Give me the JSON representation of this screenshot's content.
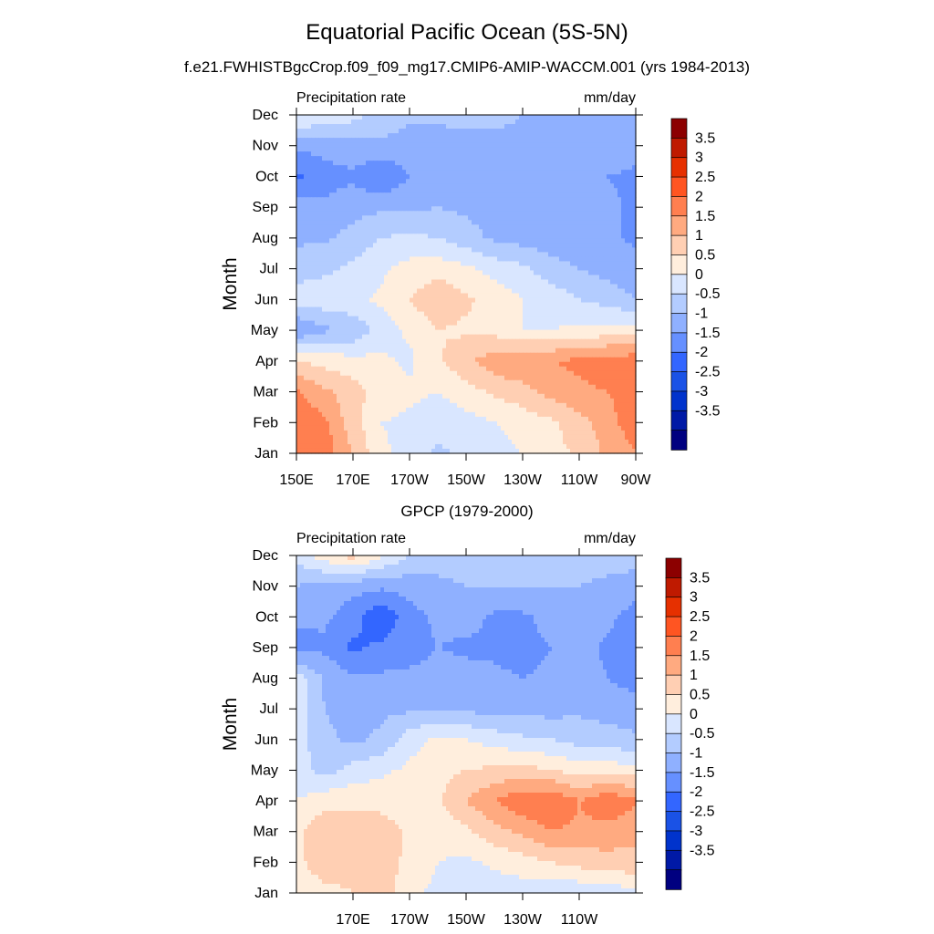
{
  "title": "Equatorial Pacific Ocean (5S-5N)",
  "subtitle": "f.e21.FWHISTBgcCrop.f09_f09_mg17.CMIP6-AMIP-WACCM.001 (yrs 1984-2013)",
  "colorbar": {
    "colors": [
      "#000080",
      "#0019a6",
      "#0033cc",
      "#1a52e6",
      "#3366ff",
      "#6690ff",
      "#8fb0ff",
      "#b3ccff",
      "#d9e6ff",
      "#ffeedd",
      "#ffcfb3",
      "#ffaa80",
      "#ff7f50",
      "#ff5522",
      "#e63000",
      "#bf1a00",
      "#8c0000"
    ],
    "labels": [
      "3.5",
      "3",
      "2.5",
      "2",
      "1.5",
      "1",
      "0.5",
      "0",
      "-0.5",
      "-1",
      "-1.5",
      "-2",
      "-2.5",
      "-3",
      "-3.5"
    ]
  },
  "chart_data": [
    {
      "type": "heatmap",
      "title": "",
      "left_label": "Precipitation rate",
      "right_label": "mm/day",
      "ylabel": "Month",
      "xlabel": "",
      "y_ticks": [
        "Jan",
        "Feb",
        "Mar",
        "Apr",
        "May",
        "Jun",
        "Jul",
        "Aug",
        "Sep",
        "Oct",
        "Nov",
        "Dec"
      ],
      "x_ticks": [
        "150E",
        "170E",
        "170W",
        "150W",
        "130W",
        "110W",
        "90W"
      ],
      "x_values": [
        150,
        170,
        190,
        210,
        230,
        250,
        270
      ],
      "xlim": [
        150,
        270
      ],
      "ylim": [
        0,
        11
      ],
      "clim": [
        -4,
        4
      ],
      "level_step": 0.5,
      "grid": [
        [
          2.2,
          2.3,
          1.5,
          0.6,
          0.3,
          -0.1,
          0.1,
          0.3,
          0.5,
          0.8,
          1.1,
          1.6,
          2.0
        ],
        [
          2.4,
          2.1,
          1.2,
          0.5,
          0.4,
          0.2,
          0.3,
          0.5,
          0.7,
          0.9,
          1.3,
          1.8,
          2.3
        ],
        [
          2.1,
          1.6,
          1.2,
          0.8,
          0.6,
          0.5,
          0.8,
          1.1,
          1.3,
          1.7,
          1.9,
          2.0,
          2.3
        ],
        [
          1.0,
          0.8,
          0.7,
          0.6,
          0.4,
          0.9,
          1.4,
          1.8,
          2.0,
          2.0,
          2.1,
          2.3,
          2.3
        ],
        [
          -1.0,
          -0.6,
          -0.4,
          0.2,
          0.6,
          1.0,
          0.9,
          0.8,
          0.5,
          0.5,
          0.6,
          0.7,
          0.8
        ],
        [
          0.2,
          0.3,
          0.4,
          0.6,
          1.0,
          1.4,
          1.1,
          0.8,
          0.5,
          0.3,
          0.0,
          -0.2,
          -0.5
        ],
        [
          -0.2,
          -0.1,
          0.1,
          0.4,
          0.7,
          0.8,
          0.6,
          0.3,
          0.1,
          -0.3,
          -0.5,
          -0.7,
          -0.8
        ],
        [
          -0.6,
          -0.6,
          -0.3,
          0.0,
          0.1,
          0.0,
          -0.3,
          -0.6,
          -0.7,
          -0.8,
          -0.8,
          -0.9,
          -1.1
        ],
        [
          -0.8,
          -0.9,
          -0.7,
          -0.6,
          -0.6,
          -0.5,
          -0.6,
          -0.7,
          -0.8,
          -0.8,
          -0.7,
          -0.9,
          -1.1
        ],
        [
          -1.6,
          -1.2,
          -1.1,
          -1.5,
          -1.0,
          -0.8,
          -1.0,
          -1.0,
          -0.8,
          -0.6,
          -0.6,
          -1.0,
          -1.1
        ],
        [
          -0.9,
          -0.8,
          -0.7,
          -0.6,
          -0.7,
          -0.7,
          -0.6,
          -0.6,
          -0.6,
          -0.6,
          -0.6,
          -0.7,
          -0.8
        ],
        [
          0.6,
          0.4,
          0.2,
          -0.2,
          -0.4,
          -0.4,
          -0.4,
          -0.4,
          -0.5,
          -0.5,
          -0.5,
          -0.6,
          -0.6
        ]
      ]
    },
    {
      "type": "heatmap",
      "title": "GPCP (1979-2000)",
      "left_label": "Precipitation rate",
      "right_label": "mm/day",
      "ylabel": "Month",
      "xlabel": "",
      "y_ticks": [
        "Jan",
        "Feb",
        "Mar",
        "Apr",
        "May",
        "Jun",
        "Jul",
        "Aug",
        "Sep",
        "Oct",
        "Nov",
        "Dec"
      ],
      "x_ticks": [
        "170E",
        "170W",
        "150W",
        "130W",
        "110W"
      ],
      "x_values": [
        170,
        190,
        210,
        230,
        250
      ],
      "xlim": [
        150,
        270
      ],
      "ylim": [
        0,
        11
      ],
      "clim": [
        -4,
        4
      ],
      "level_step": 0.5,
      "grid": [
        [
          0.8,
          0.9,
          1.0,
          1.3,
          0.6,
          0.4,
          0.2,
          0.2,
          0.2,
          0.1,
          0.1,
          0.2,
          0.3
        ],
        [
          0.9,
          1.2,
          1.1,
          1.4,
          0.8,
          0.5,
          0.4,
          0.6,
          0.8,
          1.0,
          1.2,
          1.3,
          1.4
        ],
        [
          0.9,
          1.4,
          1.2,
          1.3,
          0.9,
          0.7,
          0.9,
          1.3,
          1.6,
          2.0,
          1.9,
          1.8,
          1.6
        ],
        [
          0.5,
          0.8,
          0.9,
          0.8,
          0.7,
          0.9,
          1.5,
          2.0,
          2.4,
          2.5,
          2.0,
          2.4,
          2.1
        ],
        [
          0.2,
          -0.2,
          0.2,
          0.4,
          0.6,
          0.9,
          1.0,
          1.1,
          1.2,
          1.0,
          0.8,
          0.8,
          0.7
        ],
        [
          0.3,
          -0.4,
          -0.6,
          -0.4,
          0.3,
          0.6,
          0.5,
          0.3,
          0.1,
          0.0,
          -0.2,
          -0.3,
          -0.4
        ],
        [
          0.4,
          -0.5,
          -0.7,
          -0.6,
          -0.6,
          -0.5,
          -0.6,
          -0.7,
          -0.7,
          -0.7,
          -0.6,
          -0.7,
          -0.8
        ],
        [
          0.3,
          -0.6,
          -0.9,
          -0.9,
          -0.9,
          -0.8,
          -0.8,
          -0.9,
          -1.0,
          -0.9,
          -0.8,
          -1.0,
          -1.2
        ],
        [
          -1.3,
          -1.1,
          -1.6,
          -1.4,
          -1.2,
          -1.0,
          -1.1,
          -1.1,
          -1.2,
          -1.0,
          -0.8,
          -1.1,
          -1.2
        ],
        [
          -0.8,
          -0.9,
          -1.3,
          -1.9,
          -1.2,
          -0.9,
          -0.8,
          -1.1,
          -1.1,
          -0.8,
          -0.6,
          -0.9,
          -1.2
        ],
        [
          -0.5,
          -0.7,
          -0.8,
          -0.9,
          -0.8,
          -0.6,
          -0.5,
          -0.5,
          -0.5,
          -0.5,
          -0.5,
          -0.6,
          -0.8
        ],
        [
          0.2,
          0.8,
          1.2,
          0.6,
          0.0,
          -0.3,
          -0.3,
          -0.3,
          -0.2,
          -0.2,
          -0.3,
          -0.3,
          -0.2
        ]
      ]
    }
  ]
}
